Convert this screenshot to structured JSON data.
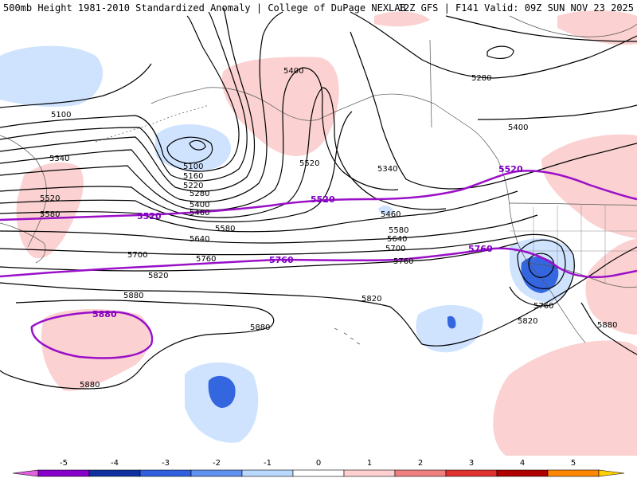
{
  "header": {
    "title": "500mb Height 1981-2010 Standardized Anomaly | College of DuPage NEXLAB",
    "run_info": "12Z GFS | F141 Valid: 09Z SUN NOV 23 2025"
  },
  "map": {
    "region": "North Pacific and western North America",
    "contour_labels": [
      "5100",
      "5400",
      "5280",
      "5400",
      "5340",
      "5520",
      "5340",
      "5100",
      "5160",
      "5220",
      "5280",
      "5400",
      "5460",
      "5460",
      "5520",
      "5580",
      "5580",
      "5640",
      "5700",
      "5760",
      "5760",
      "5820",
      "5820",
      "5880",
      "5880",
      "5880",
      "5580",
      "5640",
      "5700",
      "5760",
      "5820",
      "5880"
    ],
    "highlighted_contours": [
      "5520",
      "5520",
      "5520",
      "5760",
      "5760",
      "5880"
    ]
  },
  "colorbar": {
    "tick_labels": [
      "-5",
      "-4",
      "-3",
      "-2",
      "-1",
      "0",
      "1",
      "2",
      "3",
      "4",
      "5"
    ],
    "colors": [
      "#e060e0",
      "#8800cc",
      "#1030a0",
      "#3060e0",
      "#6090f0",
      "#b8d8ff",
      "#ffffff",
      "#ffd0d0",
      "#f08080",
      "#e03030",
      "#b00000",
      "#ff8800",
      "#ffd000"
    ]
  }
}
